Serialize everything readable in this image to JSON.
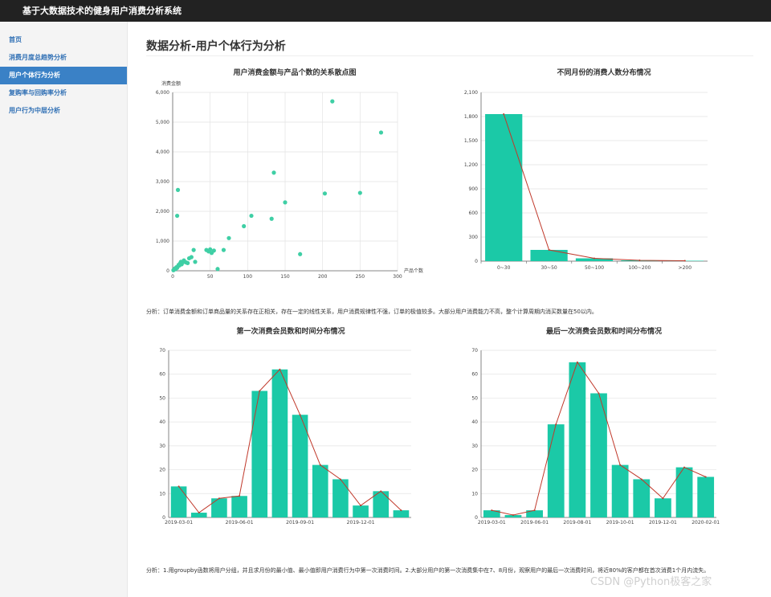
{
  "app": {
    "title": "基于大数据技术的健身用户消费分析系统"
  },
  "sidebar": {
    "items": [
      {
        "label": "首页",
        "active": false
      },
      {
        "label": "消费月度总趋势分析",
        "active": false
      },
      {
        "label": "用户个体行为分析",
        "active": true
      },
      {
        "label": "复购率与回购率分析",
        "active": false
      },
      {
        "label": "用户行为中层分析",
        "active": false
      }
    ]
  },
  "main": {
    "title": "数据分析-用户个体行为分析",
    "analysis_1": "分析：订单消费金额和订单商品量的关系存在正相关，存在一定的线性关系，用户消费规律性不强，订单的极值较多。大部分用户消费能力不高，整个计算周期内消买数量在50以内。",
    "analysis_2": "分析：1.用groupby函数将用户分组，并且求月份的最小值、最小值即用户消费行为中第一次消费时间。2.大部分用户的第一次消费集中在7、8月份，观察用户的最后一次消费时间，将近80%的客户都在首次消费1个月内流失。"
  },
  "watermark": "CSDN @Python极客之家",
  "chart_data": [
    {
      "type": "scatter",
      "title": "用户消费金额与产品个数的关系散点图",
      "xlabel": "产品个数",
      "ylabel": "消费金额",
      "xlim": [
        0,
        300
      ],
      "ylim": [
        0,
        6000
      ],
      "xticks": [
        "0",
        "50",
        "100",
        "150",
        "200",
        "250",
        "300"
      ],
      "yticks": [
        "0",
        "1,000",
        "2,000",
        "3,000",
        "4,000",
        "5,000",
        "6,000"
      ],
      "color": "#3fcfa5",
      "points": [
        [
          1,
          20
        ],
        [
          2,
          40
        ],
        [
          3,
          80
        ],
        [
          4,
          60
        ],
        [
          5,
          120
        ],
        [
          6,
          100
        ],
        [
          7,
          150
        ],
        [
          8,
          200
        ],
        [
          9,
          180
        ],
        [
          10,
          250
        ],
        [
          11,
          300
        ],
        [
          12,
          220
        ],
        [
          13,
          280
        ],
        [
          15,
          350
        ],
        [
          16,
          300
        ],
        [
          18,
          280
        ],
        [
          20,
          260
        ],
        [
          22,
          420
        ],
        [
          25,
          460
        ],
        [
          28,
          700
        ],
        [
          30,
          300
        ],
        [
          45,
          700
        ],
        [
          48,
          650
        ],
        [
          50,
          720
        ],
        [
          52,
          600
        ],
        [
          55,
          680
        ],
        [
          60,
          60
        ],
        [
          68,
          700
        ],
        [
          75,
          1100
        ],
        [
          95,
          1500
        ],
        [
          105,
          1850
        ],
        [
          132,
          1750
        ],
        [
          135,
          3300
        ],
        [
          150,
          2300
        ],
        [
          170,
          560
        ],
        [
          203,
          2600
        ],
        [
          213,
          5700
        ],
        [
          250,
          2620
        ],
        [
          278,
          4650
        ],
        [
          6,
          1850
        ],
        [
          7,
          2720
        ]
      ],
      "grid": true
    },
    {
      "type": "bar",
      "title": "不同月份的消费人数分布情况",
      "categories": [
        "0~30",
        "30~50",
        "50~100",
        "100~200",
        ">200"
      ],
      "values": [
        1830,
        140,
        35,
        10,
        5
      ],
      "line": true,
      "ylim": [
        0,
        2100
      ],
      "yticks": [
        "0",
        "300",
        "600",
        "900",
        "1,200",
        "1,500",
        "1,800",
        "2,100"
      ],
      "bar_color": "#1bc9a7",
      "line_color": "#c0392b"
    },
    {
      "type": "bar",
      "title": "第一次消费会员数和时间分布情况",
      "categories": [
        "2019-03-01",
        "",
        "",
        "2019-06-01",
        "",
        "",
        "2019-09-01",
        "",
        "",
        "2019-12-01",
        "",
        ""
      ],
      "xtick_labels": [
        "2019-03-01",
        "2019-06-01",
        "2019-09-01",
        "2019-12-01"
      ],
      "values": [
        13,
        2,
        8,
        9,
        53,
        62,
        43,
        22,
        16,
        5,
        11,
        3
      ],
      "line_values": [
        13,
        2,
        8,
        9,
        53,
        62,
        43,
        22,
        16,
        5,
        11,
        3
      ],
      "line": true,
      "ylim": [
        0,
        70
      ],
      "yticks": [
        "0",
        "10",
        "20",
        "30",
        "40",
        "50",
        "60",
        "70"
      ],
      "bar_color": "#1bc9a7",
      "line_color": "#c0392b"
    },
    {
      "type": "bar",
      "title": "最后一次消费会员数和时间分布情况",
      "categories": [
        "2019-03-01",
        "",
        "2019-06-01",
        "",
        "2019-08-01",
        "",
        "2019-10-01",
        "",
        "2019-12-01",
        "",
        "2020-02-01"
      ],
      "xtick_labels": [
        "2019-03-01",
        "2019-06-01",
        "2019-08-01",
        "2019-10-01",
        "2019-12-01",
        "2020-02-01"
      ],
      "values": [
        3,
        1,
        3,
        39,
        65,
        52,
        22,
        16,
        8,
        21,
        17
      ],
      "line_values": [
        3,
        1,
        3,
        39,
        65,
        52,
        22,
        16,
        8,
        21,
        17
      ],
      "line": true,
      "ylim": [
        0,
        70
      ],
      "yticks": [
        "0",
        "10",
        "20",
        "30",
        "40",
        "50",
        "60",
        "70"
      ],
      "bar_color": "#1bc9a7",
      "line_color": "#c0392b"
    }
  ]
}
